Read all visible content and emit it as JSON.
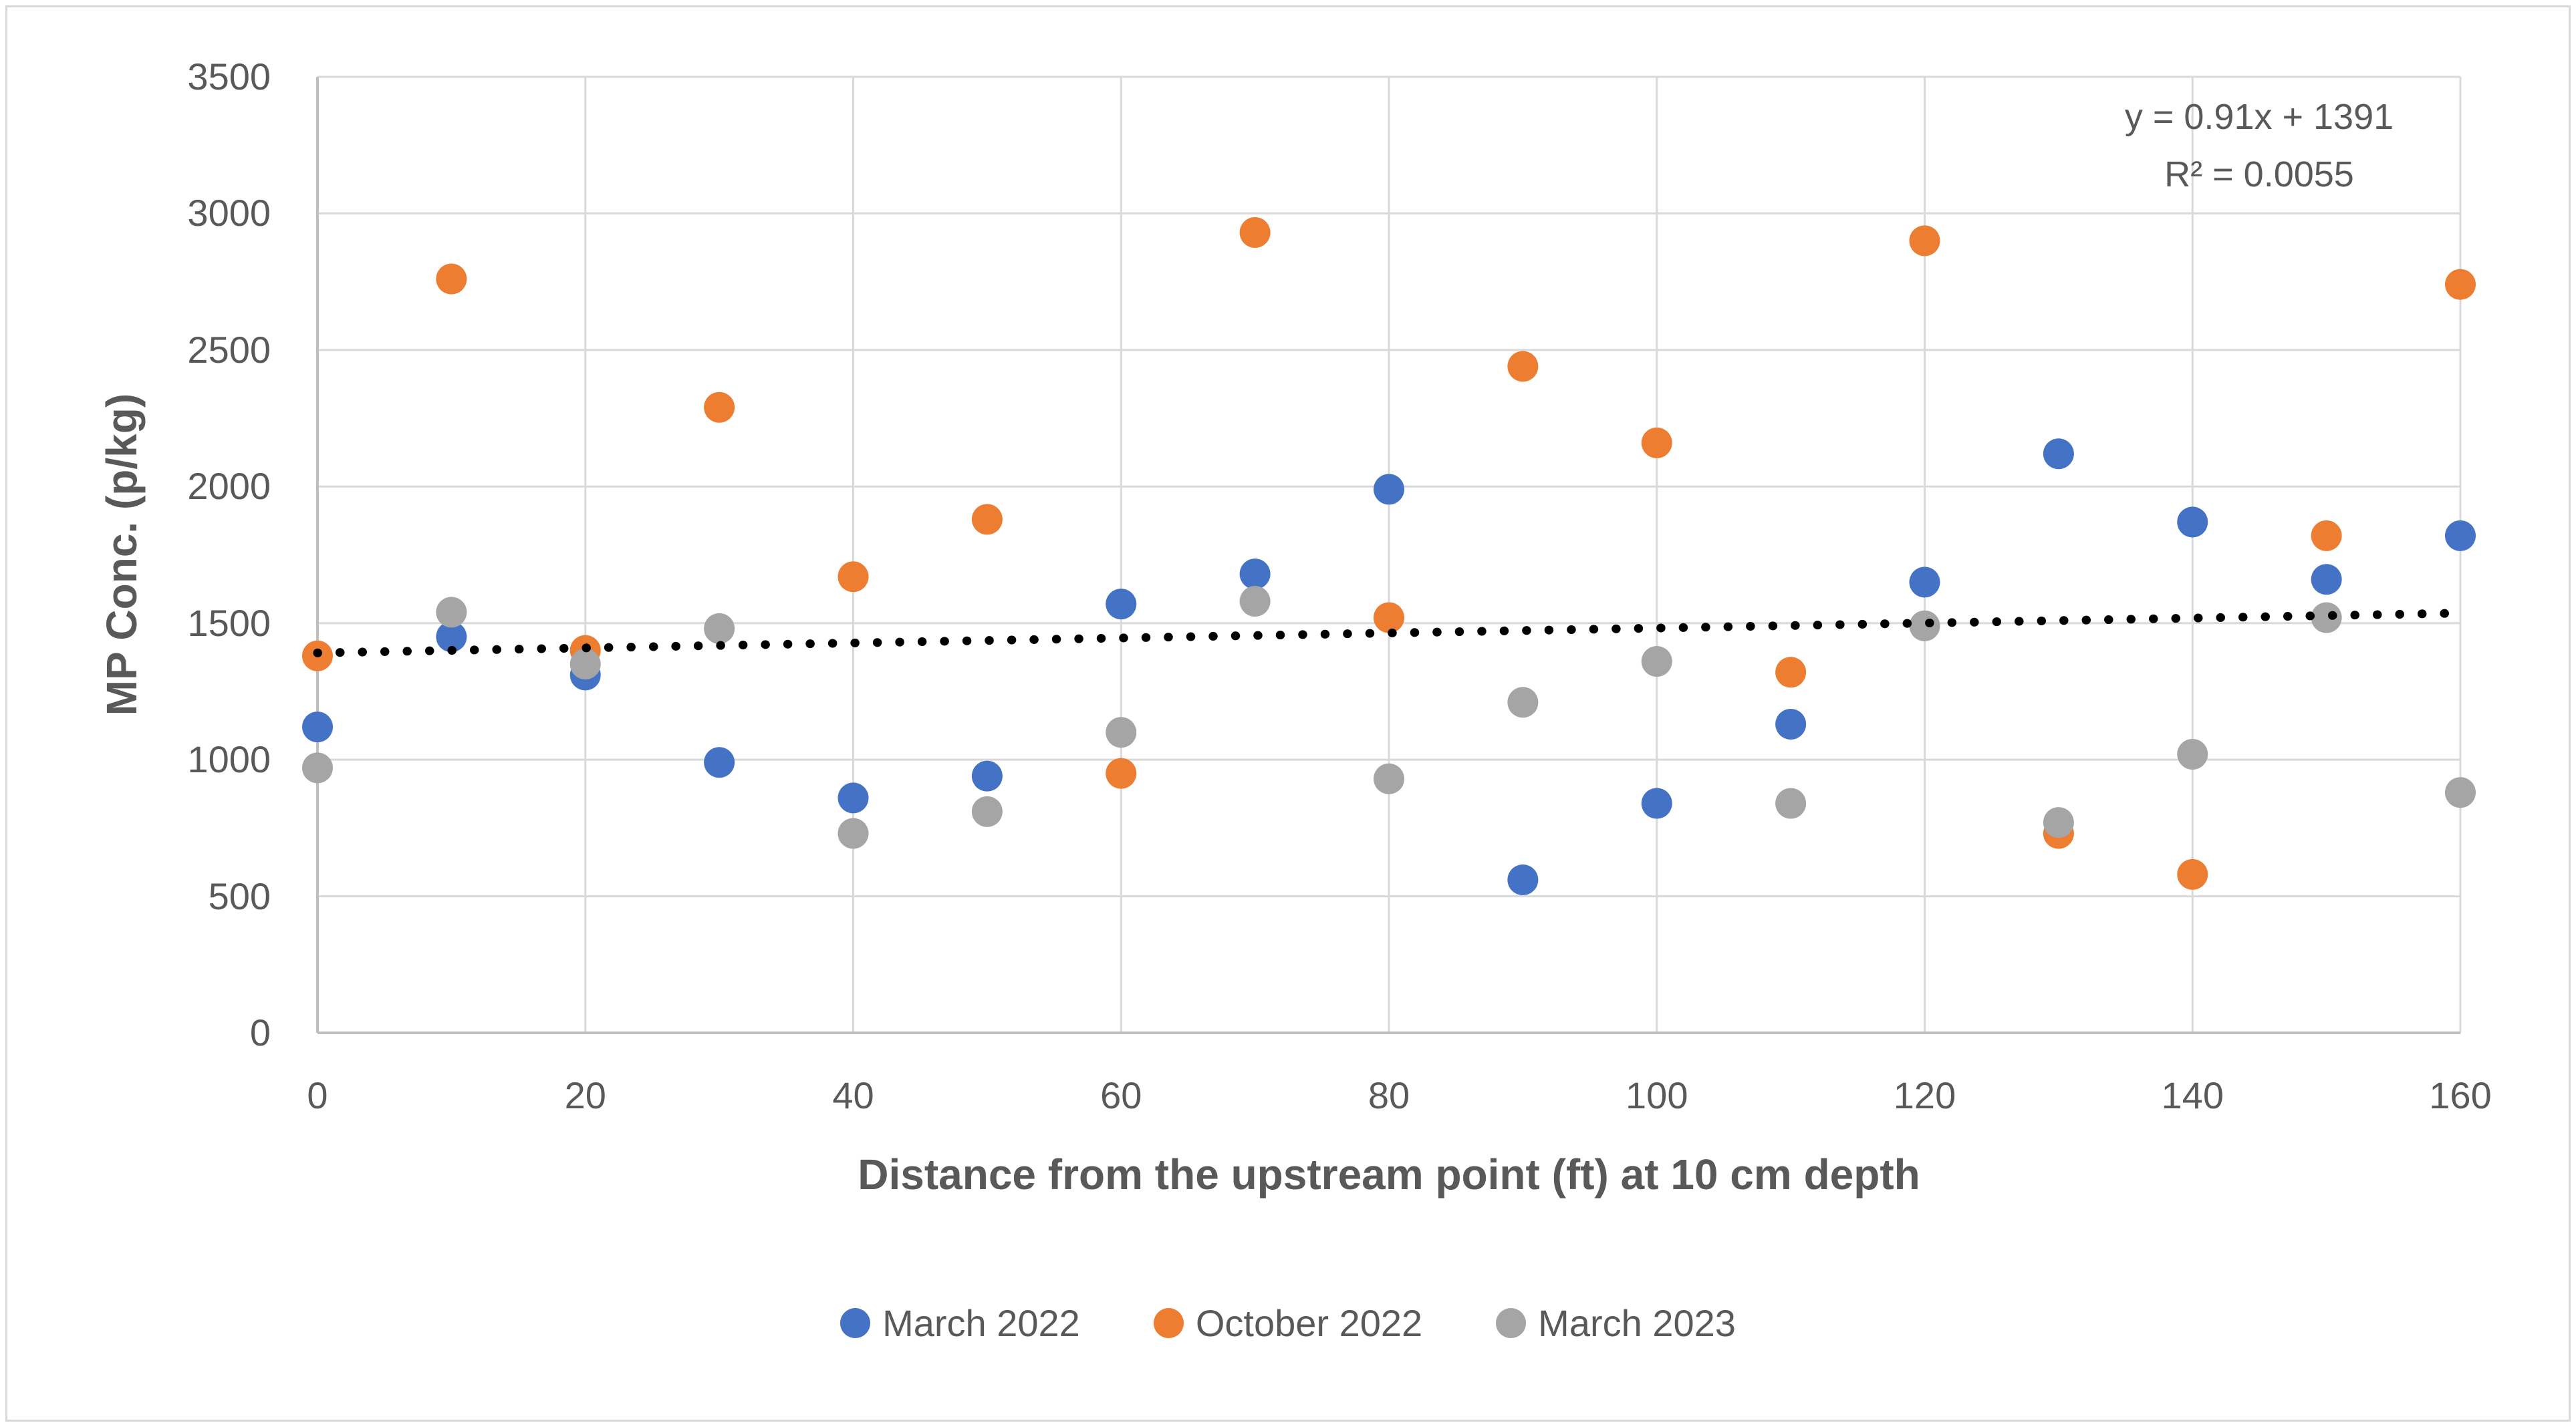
{
  "chart_data": {
    "type": "scatter",
    "title": "",
    "xlabel": "Distance from the upstream point (ft) at 10 cm depth",
    "ylabel": "MP Conc. (p/kg)",
    "xlim": [
      0,
      160
    ],
    "ylim": [
      0,
      3500
    ],
    "x_ticks": [
      0,
      20,
      40,
      60,
      80,
      100,
      120,
      140,
      160
    ],
    "y_ticks": [
      0,
      500,
      1000,
      1500,
      2000,
      2500,
      3000,
      3500
    ],
    "grid": true,
    "legend_position": "bottom",
    "x": [
      0,
      10,
      20,
      30,
      40,
      50,
      60,
      70,
      80,
      90,
      100,
      110,
      120,
      130,
      140,
      150,
      160
    ],
    "series": [
      {
        "name": "March 2022",
        "color": "#4472C4",
        "values": [
          1120,
          1450,
          1310,
          990,
          860,
          940,
          1570,
          1680,
          1990,
          560,
          840,
          1130,
          1650,
          2120,
          1870,
          1660,
          1820
        ]
      },
      {
        "name": "October 2022",
        "color": "#ED7D31",
        "values": [
          1380,
          2760,
          1400,
          2290,
          1670,
          1880,
          950,
          2930,
          1520,
          2440,
          2160,
          1320,
          2900,
          730,
          580,
          1820,
          2740
        ]
      },
      {
        "name": "March 2023",
        "color": "#A5A5A5",
        "values": [
          970,
          1540,
          1350,
          1480,
          730,
          810,
          1100,
          1580,
          930,
          1210,
          1360,
          840,
          1490,
          770,
          1020,
          1520,
          880
        ]
      }
    ],
    "trendline": {
      "slope": 0.91,
      "intercept": 1391,
      "equation_label": "y = 0.91x + 1391",
      "r2_label": "R² = 0.0055",
      "color": "#000000",
      "style": "dotted"
    },
    "colors": {
      "gridline": "#D9D9D9",
      "axis_line": "#BFBFBF",
      "text": "#595959",
      "background": "#FFFFFF",
      "border": "#D9D9D9"
    }
  }
}
